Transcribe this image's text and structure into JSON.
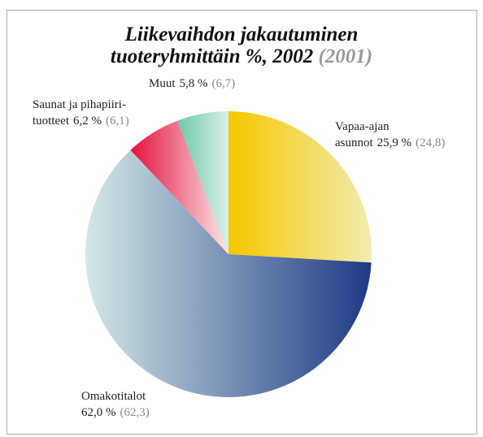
{
  "chart_data": {
    "type": "pie",
    "title_lines": [
      "Liikevaihdon jakautuminen",
      "tuoteryhmittäin %, 2002"
    ],
    "title_comparison": "(2001)",
    "categories": [
      [
        "Vapaa-ajan",
        "asunnot"
      ],
      [
        "Omakotitalot"
      ],
      [
        "Saunat ja pihapiiri-",
        "tuotteet"
      ],
      [
        "Muut"
      ]
    ],
    "values": [
      25.9,
      62.0,
      6.2,
      5.8
    ],
    "value_labels": [
      "25,9 %",
      "62,0 %",
      "6,2 %",
      "5,8 %"
    ],
    "prev_values": [
      24.8,
      62.3,
      6.1,
      6.7
    ],
    "prev_value_labels": [
      "(24,8)",
      "(62,3)",
      "(6,1)",
      "(6,7)"
    ],
    "colors": [
      "#f6c700",
      "#1e3985",
      "#e3103c",
      "#6fc8aa"
    ],
    "gradient_colors": [
      "#f2ecb0",
      "#d4e8e6",
      "#fbe6e8",
      "#d8efe6"
    ],
    "start_angle": 0,
    "clockwise": true
  }
}
